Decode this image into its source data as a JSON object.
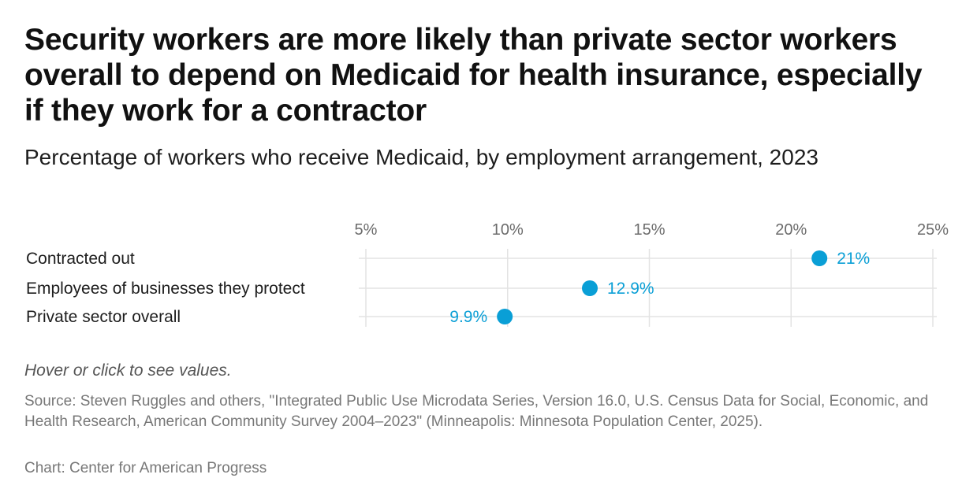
{
  "header": {
    "title": "Security workers are more likely than private sector workers overall to depend on Medicaid for health insurance, especially if they work for a contractor",
    "subtitle": "Percentage of workers who receive Medicaid, by employment arrangement, 2023"
  },
  "footer": {
    "hint": "Hover or click to see values.",
    "source": "Source: Steven Ruggles and others, \"Integrated Public Use Microdata Series, Version 16.0, U.S. Census Data for Social, Economic, and Health Research, American Community Survey 2004–2023\" (Minneapolis: Minnesota Population Center, 2025).",
    "credit": "Chart: Center for American Progress"
  },
  "chart_data": {
    "type": "scatter",
    "title": "Security workers are more likely than private sector workers overall to depend on Medicaid for health insurance, especially if they work for a contractor",
    "subtitle": "Percentage of workers who receive Medicaid, by employment arrangement, 2023",
    "xlabel": "",
    "ylabel": "",
    "xlim": [
      5,
      25
    ],
    "xticks": [
      5,
      10,
      15,
      20,
      25
    ],
    "xtick_labels": [
      "5%",
      "10%",
      "15%",
      "20%",
      "25%"
    ],
    "x_axis_position": "top",
    "grid": true,
    "categories": [
      "Contracted out",
      "Employees of businesses they protect",
      "Private sector overall"
    ],
    "values": [
      21.0,
      12.9,
      9.9
    ],
    "value_labels": [
      "21%",
      "12.9%",
      "9.9%"
    ],
    "point_color": "#0a9fd6",
    "label_color": "#0a9fd6",
    "grid_color": "#e3e3e3"
  }
}
